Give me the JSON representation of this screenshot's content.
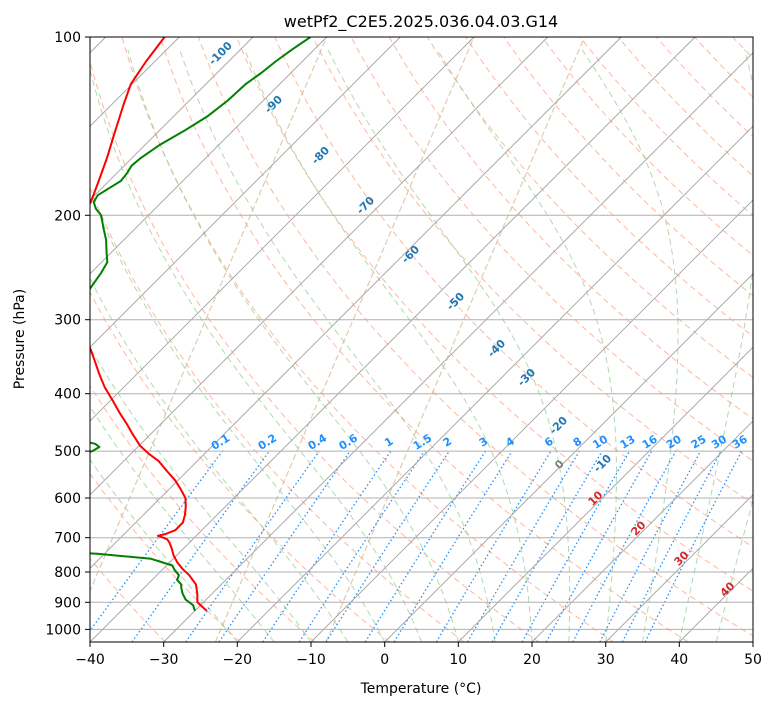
{
  "chart_data": {
    "type": "skew-t",
    "title": "wetPf2_C2E5.2025.036.04.03.G14",
    "xlabel": "Temperature (°C)",
    "ylabel": "Pressure (hPa)",
    "xlim": [
      -40,
      50
    ],
    "ylim": [
      1050,
      100
    ],
    "x_ticks": [
      -40,
      -30,
      -20,
      -10,
      0,
      10,
      20,
      30,
      40,
      50
    ],
    "x_tick_labels": [
      "−40",
      "−30",
      "−20",
      "−10",
      "0",
      "10",
      "20",
      "30",
      "40",
      "50"
    ],
    "y_ticks": [
      100,
      200,
      300,
      400,
      500,
      600,
      700,
      800,
      900,
      1000
    ],
    "y_tick_labels": [
      "100",
      "200",
      "300",
      "400",
      "500",
      "600",
      "700",
      "800",
      "900",
      "1000"
    ],
    "grid": true,
    "colors": {
      "temperature": "#ff0000",
      "dewpoint": "#008000",
      "isotherm": "#a0a0a0",
      "dry_adiabat": "#ff9f80",
      "moist_adiabat": "#8fc98f",
      "mixing_ratio": "#1e90ff",
      "lcl_curve": "#d2b48c",
      "isotherm_label": "#1f77b4",
      "isotherm_label_warm": "#d62728"
    },
    "isotherm_labels": [
      "-100",
      "-90",
      "-80",
      "-70",
      "-60",
      "-50",
      "-40",
      "-30",
      "-20",
      "-10",
      "0",
      "10",
      "20",
      "30",
      "40"
    ],
    "mixing_ratio_labels": [
      "0.1",
      "0.2",
      "0.4",
      "0.6",
      "1",
      "1.5",
      "2",
      "3",
      "4",
      "6",
      "8",
      "10",
      "13",
      "16",
      "20",
      "25",
      "30",
      "36"
    ],
    "series": [
      {
        "role": "temperature",
        "pressure": [
          930,
          920,
          900,
          870,
          840,
          810,
          790,
          770,
          750,
          730,
          715,
          705,
          700,
          695,
          690,
          680,
          660,
          640,
          620,
          600,
          580,
          560,
          540,
          520,
          505,
          490,
          470,
          450,
          430,
          410,
          390,
          370,
          350,
          330,
          310,
          290,
          270,
          250,
          235,
          220,
          205,
          190,
          175,
          160,
          145,
          130,
          120,
          110,
          100
        ],
        "temperature": [
          -28.4,
          -29.2,
          -30.8,
          -32.0,
          -33.4,
          -35.6,
          -37.4,
          -39.0,
          -40.4,
          -41.6,
          -42.6,
          -43.4,
          -44.2,
          -45.2,
          -44.4,
          -43.6,
          -43.6,
          -44.4,
          -45.4,
          -46.6,
          -48.4,
          -50.4,
          -52.8,
          -55.2,
          -57.6,
          -59.8,
          -62.2,
          -64.6,
          -67.2,
          -69.8,
          -72.6,
          -75.2,
          -77.8,
          -80.6,
          -83.4,
          -86.2,
          -89.0,
          -92.0,
          -94.6,
          -97.2,
          -98.6,
          -99.6,
          -101.4,
          -103.4,
          -105.8,
          -108.4,
          -110.2,
          -111.2,
          -112.0
        ]
      },
      {
        "role": "dewpoint",
        "pressure": [
          930,
          910,
          890,
          870,
          850,
          840,
          825,
          810,
          795,
          780,
          760,
          745,
          735,
          725,
          712,
          704,
          698,
          693,
          690,
          685,
          680,
          670,
          655,
          640,
          620,
          600,
          585,
          570,
          560,
          550,
          540,
          530,
          520,
          510,
          500,
          492,
          486,
          480,
          474,
          468,
          462,
          456,
          450,
          446,
          443,
          440,
          436,
          432,
          428,
          424,
          420,
          414,
          408,
          400,
          392,
          384,
          376,
          368,
          360,
          352,
          344,
          336,
          328,
          320,
          312,
          304,
          296,
          288,
          280,
          270,
          260,
          250,
          240,
          230,
          220,
          210,
          200,
          195,
          190,
          185,
          180,
          175,
          170,
          165,
          160,
          152,
          144,
          136,
          128,
          120,
          115,
          110,
          105,
          100
        ],
        "temperature": [
          -30.0,
          -31.0,
          -32.8,
          -34.0,
          -35.0,
          -35.4,
          -36.6,
          -37.0,
          -38.2,
          -39.2,
          -43.0,
          -51.0,
          -61.0,
          -75.0,
          -85.0,
          -92.0,
          -96.0,
          -100.0,
          -104.0,
          -96.0,
          -85.0,
          -82.0,
          -81.4,
          -81.0,
          -80.6,
          -80.6,
          -82.0,
          -83.4,
          -81.6,
          -79.0,
          -76.0,
          -72.6,
          -69.2,
          -66.8,
          -65.6,
          -65.2,
          -66.2,
          -68.6,
          -72.0,
          -76.0,
          -81.0,
          -89.0,
          -100.0,
          -104.0,
          -96.0,
          -90.0,
          -85.6,
          -81.8,
          -80.0,
          -80.2,
          -81.0,
          -82.2,
          -82.0,
          -80.0,
          -78.0,
          -79.0,
          -80.4,
          -81.4,
          -81.6,
          -82.0,
          -82.6,
          -83.2,
          -83.6,
          -84.2,
          -85.0,
          -85.6,
          -86.2,
          -86.8,
          -87.6,
          -87.8,
          -88.2,
          -88.6,
          -89.2,
          -90.8,
          -92.4,
          -94.4,
          -96.4,
          -98.0,
          -99.2,
          -99.6,
          -99.0,
          -98.4,
          -98.6,
          -99.0,
          -98.8,
          -98.0,
          -96.6,
          -95.4,
          -94.8,
          -94.6,
          -94.0,
          -93.6,
          -93.0,
          -92.2
        ]
      }
    ]
  }
}
